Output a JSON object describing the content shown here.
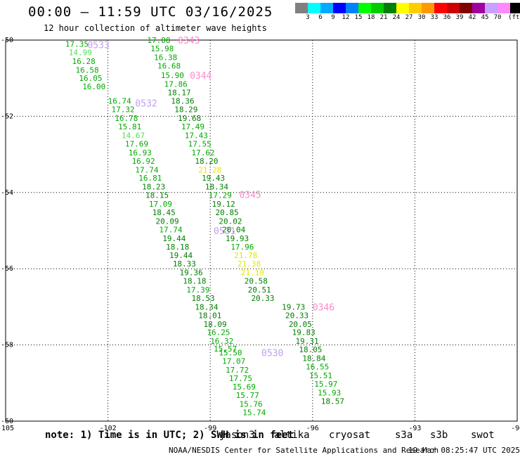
{
  "title": "00:00 – 11:59 UTC 03/16/2025",
  "subtitle": "12 hour collection of altimeter wave heights",
  "legend": {
    "colors": [
      "#808080",
      "#00ffff",
      "#00aaff",
      "#0000ff",
      "#0080ff",
      "#00ff00",
      "#00cc00",
      "#008000",
      "#ffff00",
      "#ffcc00",
      "#ff9900",
      "#ff0000",
      "#cc0000",
      "#800000",
      "#a000a0",
      "#c8a0ff",
      "#ff88ff",
      "#000000"
    ],
    "labels": [
      "3",
      "6",
      "9",
      "12",
      "15",
      "18",
      "21",
      "24",
      "27",
      "30",
      "33",
      "36",
      "39",
      "42",
      "45",
      "70",
      "(ft)"
    ]
  },
  "axes": {
    "lon_ticks": [
      "-105",
      "-102",
      "-99",
      "-96",
      "-93",
      "-90"
    ],
    "lat_ticks": [
      "-50",
      "-52",
      "-54",
      "-56",
      "-58",
      "-60"
    ]
  },
  "tracks": [
    {
      "pass": "0533",
      "label_color": "#c0a0f0",
      "pass_lat": -50.12,
      "pass_lon": -102.6,
      "points": [
        {
          "v": "17.35",
          "lat": -50.1,
          "lon": -103.25,
          "c": "#00aa00"
        },
        {
          "v": "14.99",
          "lat": -50.32,
          "lon": -103.15,
          "c": "#55dd55"
        },
        {
          "v": "16.28",
          "lat": -50.55,
          "lon": -103.05,
          "c": "#00aa00"
        },
        {
          "v": "16.58",
          "lat": -50.78,
          "lon": -102.95,
          "c": "#00aa00"
        },
        {
          "v": "16.05",
          "lat": -51.0,
          "lon": -102.85,
          "c": "#00aa00"
        },
        {
          "v": "16.00",
          "lat": -51.22,
          "lon": -102.75,
          "c": "#00aa00"
        }
      ]
    },
    {
      "pass": "0532",
      "label_color": "#c0a0f0",
      "pass_lat": -51.65,
      "pass_lon": -101.2,
      "points": [
        {
          "v": "16.74",
          "lat": -51.6,
          "lon": -102.0,
          "c": "#00aa00"
        },
        {
          "v": "17.32",
          "lat": -51.82,
          "lon": -101.9,
          "c": "#00aa00"
        },
        {
          "v": "16.78",
          "lat": -52.05,
          "lon": -101.8,
          "c": "#00aa00"
        },
        {
          "v": "15.81",
          "lat": -52.27,
          "lon": -101.7,
          "c": "#00aa00"
        },
        {
          "v": "14.67",
          "lat": -52.5,
          "lon": -101.6,
          "c": "#55dd55"
        },
        {
          "v": "17.69",
          "lat": -52.72,
          "lon": -101.5,
          "c": "#00aa00"
        },
        {
          "v": "16.93",
          "lat": -52.95,
          "lon": -101.4,
          "c": "#00aa00"
        },
        {
          "v": "16.92",
          "lat": -53.17,
          "lon": -101.3,
          "c": "#00aa00"
        },
        {
          "v": "17.74",
          "lat": -53.4,
          "lon": -101.2,
          "c": "#00aa00"
        },
        {
          "v": "16.81",
          "lat": -53.62,
          "lon": -101.1,
          "c": "#00aa00"
        },
        {
          "v": "18.23",
          "lat": -53.85,
          "lon": -101.0,
          "c": "#008000"
        },
        {
          "v": "18.15",
          "lat": -54.07,
          "lon": -100.9,
          "c": "#008000"
        },
        {
          "v": "17.09",
          "lat": -54.3,
          "lon": -100.8,
          "c": "#00aa00"
        },
        {
          "v": "18.45",
          "lat": -54.52,
          "lon": -100.7,
          "c": "#008000"
        }
      ]
    },
    {
      "pass": "0531",
      "label_color": "#c0a0f0",
      "pass_lat": -55.0,
      "pass_lon": -98.9,
      "points": [
        {
          "v": "20.09",
          "lat": -54.75,
          "lon": -100.6,
          "c": "#008000"
        },
        {
          "v": "17.74",
          "lat": -54.97,
          "lon": -100.5,
          "c": "#00aa00"
        },
        {
          "v": "19.44",
          "lat": -55.2,
          "lon": -100.4,
          "c": "#008000"
        },
        {
          "v": "18.18",
          "lat": -55.42,
          "lon": -100.3,
          "c": "#008000"
        },
        {
          "v": "19.44",
          "lat": -55.65,
          "lon": -100.2,
          "c": "#008000"
        },
        {
          "v": "18.33",
          "lat": -55.87,
          "lon": -100.1,
          "c": "#008000"
        },
        {
          "v": "19.36",
          "lat": -56.1,
          "lon": -99.9,
          "c": "#008000"
        },
        {
          "v": "18.18",
          "lat": -56.32,
          "lon": -99.8,
          "c": "#008000"
        },
        {
          "v": "17.39",
          "lat": -56.55,
          "lon": -99.7,
          "c": "#00aa00"
        },
        {
          "v": "18.53",
          "lat": -56.77,
          "lon": -99.55,
          "c": "#008000"
        },
        {
          "v": "18.34",
          "lat": -57.0,
          "lon": -99.45,
          "c": "#008000"
        },
        {
          "v": "18.01",
          "lat": -57.22,
          "lon": -99.35,
          "c": "#008000"
        },
        {
          "v": "18.09",
          "lat": -57.45,
          "lon": -99.2,
          "c": "#008000"
        },
        {
          "v": "16.25",
          "lat": -57.67,
          "lon": -99.1,
          "c": "#00aa00"
        },
        {
          "v": "16.32",
          "lat": -57.9,
          "lon": -99.0,
          "c": "#00aa00"
        },
        {
          "v": "15.57",
          "lat": -58.1,
          "lon": -98.9,
          "c": "#00aa00"
        }
      ]
    },
    {
      "pass": "0530",
      "label_color": "#c0a0f0",
      "pass_lat": -58.2,
      "pass_lon": -97.5,
      "points": [
        {
          "v": "15.50",
          "lat": -58.2,
          "lon": -98.75,
          "c": "#00aa00"
        },
        {
          "v": "17.07",
          "lat": -58.42,
          "lon": -98.65,
          "c": "#00aa00"
        },
        {
          "v": "17.72",
          "lat": -58.65,
          "lon": -98.55,
          "c": "#00aa00"
        },
        {
          "v": "17.75",
          "lat": -58.87,
          "lon": -98.45,
          "c": "#00aa00"
        },
        {
          "v": "15.69",
          "lat": -59.1,
          "lon": -98.35,
          "c": "#00aa00"
        },
        {
          "v": "15.77",
          "lat": -59.32,
          "lon": -98.25,
          "c": "#00aa00"
        },
        {
          "v": "15.76",
          "lat": -59.55,
          "lon": -98.15,
          "c": "#00aa00"
        },
        {
          "v": "15.74",
          "lat": -59.77,
          "lon": -98.05,
          "c": "#00aa00"
        }
      ]
    },
    {
      "pass": "0343",
      "label_color": "#ff88cc",
      "pass_lat": -50.0,
      "pass_lon": -99.95,
      "points": [
        {
          "v": "17.08",
          "lat": -50.0,
          "lon": -100.85,
          "c": "#00aa00"
        },
        {
          "v": "15.98",
          "lat": -50.22,
          "lon": -100.75,
          "c": "#00aa00"
        },
        {
          "v": "16.38",
          "lat": -50.45,
          "lon": -100.65,
          "c": "#00aa00"
        },
        {
          "v": "16.68",
          "lat": -50.67,
          "lon": -100.55,
          "c": "#00aa00"
        }
      ]
    },
    {
      "pass": "0344",
      "label_color": "#ff88cc",
      "pass_lat": -50.92,
      "pass_lon": -99.6,
      "points": [
        {
          "v": "15.90",
          "lat": -50.92,
          "lon": -100.45,
          "c": "#00aa00"
        },
        {
          "v": "17.86",
          "lat": -51.15,
          "lon": -100.35,
          "c": "#00aa00"
        },
        {
          "v": "18.17",
          "lat": -51.37,
          "lon": -100.25,
          "c": "#008000"
        },
        {
          "v": "18.36",
          "lat": -51.6,
          "lon": -100.15,
          "c": "#008000"
        },
        {
          "v": "18.29",
          "lat": -51.82,
          "lon": -100.05,
          "c": "#008000"
        },
        {
          "v": "19.68",
          "lat": -52.05,
          "lon": -99.95,
          "c": "#008000"
        },
        {
          "v": "17.49",
          "lat": -52.27,
          "lon": -99.85,
          "c": "#00aa00"
        },
        {
          "v": "17.43",
          "lat": -52.5,
          "lon": -99.75,
          "c": "#00aa00"
        },
        {
          "v": "17.55",
          "lat": -52.72,
          "lon": -99.65,
          "c": "#00aa00"
        },
        {
          "v": "17.62",
          "lat": -52.95,
          "lon": -99.55,
          "c": "#00aa00"
        },
        {
          "v": "18.20",
          "lat": -53.17,
          "lon": -99.45,
          "c": "#008000"
        },
        {
          "v": "21.28",
          "lat": -53.4,
          "lon": -99.35,
          "c": "#e6e600"
        },
        {
          "v": "19.43",
          "lat": -53.62,
          "lon": -99.25,
          "c": "#008000"
        }
      ]
    },
    {
      "pass": "0345",
      "label_color": "#ff88cc",
      "pass_lat": -54.05,
      "pass_lon": -98.15,
      "points": [
        {
          "v": "18.34",
          "lat": -53.85,
          "lon": -99.15,
          "c": "#008000"
        },
        {
          "v": "17.29",
          "lat": -54.07,
          "lon": -99.05,
          "c": "#00aa00"
        },
        {
          "v": "19.12",
          "lat": -54.3,
          "lon": -98.95,
          "c": "#008000"
        },
        {
          "v": "20.85",
          "lat": -54.52,
          "lon": -98.85,
          "c": "#008000"
        },
        {
          "v": "20.02",
          "lat": -54.75,
          "lon": -98.75,
          "c": "#008000"
        },
        {
          "v": "20.04",
          "lat": -54.97,
          "lon": -98.65,
          "c": "#008000"
        },
        {
          "v": "19.93",
          "lat": -55.2,
          "lon": -98.55,
          "c": "#008000"
        },
        {
          "v": "17.96",
          "lat": -55.42,
          "lon": -98.4,
          "c": "#00aa00"
        },
        {
          "v": "21.78",
          "lat": -55.65,
          "lon": -98.3,
          "c": "#e6e600"
        },
        {
          "v": "21.38",
          "lat": -55.87,
          "lon": -98.2,
          "c": "#e6e600"
        },
        {
          "v": "21.10",
          "lat": -56.1,
          "lon": -98.1,
          "c": "#e6e600"
        },
        {
          "v": "20.58",
          "lat": -56.32,
          "lon": -98.0,
          "c": "#008000"
        },
        {
          "v": "20.51",
          "lat": -56.55,
          "lon": -97.9,
          "c": "#008000"
        },
        {
          "v": "20.33",
          "lat": -56.77,
          "lon": -97.8,
          "c": "#008000"
        }
      ]
    },
    {
      "pass": "0346",
      "label_color": "#ff88cc",
      "pass_lat": -57.0,
      "pass_lon": -96.0,
      "points": [
        {
          "v": "19.73",
          "lat": -57.0,
          "lon": -96.9,
          "c": "#008000"
        },
        {
          "v": "20.33",
          "lat": -57.22,
          "lon": -96.8,
          "c": "#008000"
        },
        {
          "v": "20.05",
          "lat": -57.45,
          "lon": -96.7,
          "c": "#008000"
        },
        {
          "v": "19.83",
          "lat": -57.67,
          "lon": -96.6,
          "c": "#008000"
        },
        {
          "v": "19.31",
          "lat": -57.9,
          "lon": -96.5,
          "c": "#008000"
        },
        {
          "v": "18.05",
          "lat": -58.12,
          "lon": -96.4,
          "c": "#008000"
        },
        {
          "v": "18.84",
          "lat": -58.35,
          "lon": -96.3,
          "c": "#008000"
        },
        {
          "v": "16.55",
          "lat": -58.57,
          "lon": -96.2,
          "c": "#00aa00"
        },
        {
          "v": "15.51",
          "lat": -58.8,
          "lon": -96.1,
          "c": "#00aa00"
        },
        {
          "v": "15.97",
          "lat": -59.02,
          "lon": -95.95,
          "c": "#00aa00"
        },
        {
          "v": "15.93",
          "lat": -59.25,
          "lon": -95.85,
          "c": "#00aa00"
        },
        {
          "v": "18.57",
          "lat": -59.47,
          "lon": -95.75,
          "c": "#008000"
        }
      ]
    }
  ],
  "footer": {
    "note": "note: 1) Time is in UTC; 2) SWH is in feet",
    "satellites": [
      {
        "name": "jason3",
        "color": "#008000"
      },
      {
        "name": "altika",
        "color": "#ff9900"
      },
      {
        "name": "cryosat",
        "color": "#ff0000"
      },
      {
        "name": "s3a",
        "color": "#800000"
      },
      {
        "name": "s3b",
        "color": "#c8a0ff"
      },
      {
        "name": "swot",
        "color": "#ff88cc"
      }
    ],
    "credit": "NOAA/NESDIS Center for Satellite Applications and Research",
    "timestamp": "19 Mar 08:25:47 UTC 2025"
  }
}
